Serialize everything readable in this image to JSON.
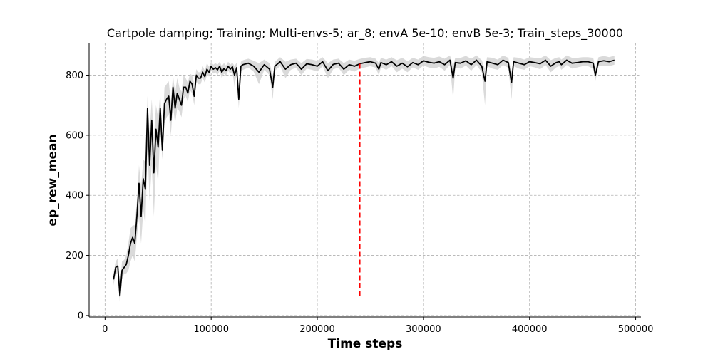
{
  "chart_data": {
    "type": "line",
    "title": "Cartpole damping; Training; Multi-envs-5; ar_8; envA 5e-10; envB 5e-3; Train_steps_30000",
    "xlabel": "Time steps",
    "ylabel": "ep_rew_mean",
    "xlim": [
      -15000,
      505000
    ],
    "ylim": [
      -5,
      908
    ],
    "xticks": [
      0,
      100000,
      200000,
      300000,
      400000,
      500000
    ],
    "xtick_labels": [
      "0",
      "100000",
      "200000",
      "300000",
      "400000",
      "500000"
    ],
    "yticks": [
      0,
      200,
      400,
      600,
      800
    ],
    "ytick_labels": [
      "0",
      "200",
      "400",
      "600",
      "800"
    ],
    "grid": true,
    "grid_style": "dashed",
    "series": [
      {
        "color": "#000000",
        "band_color": "#d3d3d3",
        "x": [
          8000,
          10000,
          12000,
          14000,
          16000,
          18000,
          20000,
          22000,
          24000,
          26000,
          28000,
          30000,
          32000,
          34000,
          36000,
          38000,
          40000,
          42000,
          44000,
          46000,
          48000,
          50000,
          52000,
          54000,
          56000,
          58000,
          60000,
          62000,
          64000,
          66000,
          68000,
          70000,
          72000,
          74000,
          76000,
          78000,
          80000,
          82000,
          84000,
          86000,
          88000,
          90000,
          92000,
          94000,
          96000,
          98000,
          100000,
          102000,
          104000,
          106000,
          108000,
          110000,
          112000,
          114000,
          116000,
          118000,
          120000,
          122000,
          124000,
          126000,
          128000,
          130000,
          135000,
          140000,
          145000,
          150000,
          155000,
          158000,
          160000,
          165000,
          170000,
          175000,
          180000,
          185000,
          190000,
          195000,
          200000,
          205000,
          210000,
          215000,
          220000,
          225000,
          230000,
          235000,
          240000,
          245000,
          250000,
          255000,
          258000,
          260000,
          265000,
          270000,
          275000,
          280000,
          285000,
          290000,
          295000,
          300000,
          305000,
          310000,
          315000,
          320000,
          325000,
          328000,
          330000,
          335000,
          340000,
          345000,
          350000,
          355000,
          358000,
          360000,
          365000,
          370000,
          375000,
          380000,
          383000,
          385000,
          390000,
          395000,
          400000,
          405000,
          410000,
          415000,
          420000,
          425000,
          428000,
          430000,
          435000,
          440000,
          445000,
          450000,
          455000,
          460000,
          462000,
          465000,
          470000,
          475000,
          480000
        ],
        "values": [
          120,
          160,
          165,
          65,
          150,
          160,
          170,
          200,
          240,
          260,
          240,
          330,
          440,
          330,
          455,
          420,
          690,
          500,
          650,
          475,
          620,
          560,
          690,
          550,
          705,
          720,
          730,
          650,
          760,
          690,
          740,
          720,
          700,
          760,
          760,
          740,
          780,
          770,
          730,
          800,
          790,
          790,
          810,
          795,
          820,
          810,
          830,
          820,
          825,
          818,
          830,
          810,
          822,
          815,
          830,
          820,
          828,
          800,
          825,
          720,
          830,
          835,
          840,
          830,
          810,
          835,
          820,
          760,
          830,
          845,
          820,
          835,
          840,
          820,
          838,
          835,
          830,
          845,
          815,
          836,
          840,
          820,
          835,
          830,
          838,
          842,
          845,
          840,
          820,
          842,
          835,
          845,
          830,
          840,
          828,
          842,
          835,
          848,
          843,
          840,
          845,
          835,
          850,
          790,
          842,
          840,
          848,
          835,
          850,
          830,
          780,
          845,
          840,
          835,
          850,
          842,
          775,
          845,
          840,
          835,
          845,
          842,
          838,
          850,
          830,
          842,
          845,
          835,
          850,
          840,
          842,
          845,
          845,
          840,
          800,
          845,
          848,
          845,
          850
        ],
        "band_low": [
          100,
          140,
          140,
          40,
          120,
          140,
          140,
          150,
          180,
          200,
          180,
          260,
          330,
          240,
          350,
          300,
          560,
          380,
          500,
          330,
          500,
          440,
          620,
          520,
          640,
          660,
          670,
          600,
          700,
          640,
          690,
          680,
          660,
          720,
          730,
          710,
          750,
          740,
          700,
          780,
          770,
          770,
          790,
          775,
          800,
          795,
          815,
          805,
          810,
          800,
          815,
          790,
          805,
          798,
          815,
          805,
          812,
          760,
          808,
          690,
          815,
          818,
          825,
          812,
          770,
          818,
          800,
          720,
          815,
          830,
          790,
          818,
          825,
          800,
          822,
          818,
          812,
          830,
          790,
          820,
          825,
          800,
          818,
          812,
          822,
          826,
          830,
          825,
          800,
          826,
          818,
          830,
          810,
          822,
          810,
          826,
          818,
          832,
          826,
          822,
          828,
          815,
          834,
          720,
          825,
          822,
          832,
          815,
          834,
          810,
          700,
          830,
          822,
          818,
          834,
          825,
          720,
          830,
          822,
          818,
          830,
          826,
          820,
          834,
          810,
          826,
          830,
          818,
          834,
          822,
          826,
          830,
          830,
          822,
          780,
          830,
          832,
          830,
          835
        ],
        "band_high": [
          140,
          180,
          190,
          100,
          180,
          185,
          200,
          240,
          290,
          300,
          300,
          380,
          500,
          430,
          520,
          510,
          730,
          610,
          720,
          590,
          700,
          660,
          740,
          600,
          760,
          770,
          780,
          710,
          800,
          740,
          790,
          760,
          745,
          800,
          790,
          775,
          805,
          800,
          770,
          820,
          810,
          810,
          830,
          815,
          840,
          828,
          845,
          835,
          840,
          835,
          845,
          830,
          840,
          832,
          845,
          835,
          842,
          830,
          842,
          760,
          845,
          850,
          855,
          848,
          840,
          852,
          840,
          800,
          845,
          860,
          845,
          852,
          855,
          840,
          854,
          852,
          848,
          860,
          840,
          852,
          855,
          840,
          852,
          848,
          854,
          858,
          860,
          855,
          840,
          858,
          852,
          860,
          850,
          858,
          846,
          858,
          852,
          864,
          860,
          858,
          862,
          855,
          866,
          830,
          858,
          858,
          864,
          855,
          866,
          850,
          820,
          860,
          858,
          852,
          866,
          858,
          810,
          860,
          858,
          852,
          860,
          858,
          856,
          866,
          850,
          858,
          860,
          852,
          866,
          858,
          858,
          860,
          860,
          858,
          820,
          860,
          864,
          860,
          865
        ]
      }
    ],
    "vline": {
      "x": 240000,
      "y_range": [
        65,
        845
      ],
      "color": "#ff0000",
      "style": "dashed"
    }
  }
}
